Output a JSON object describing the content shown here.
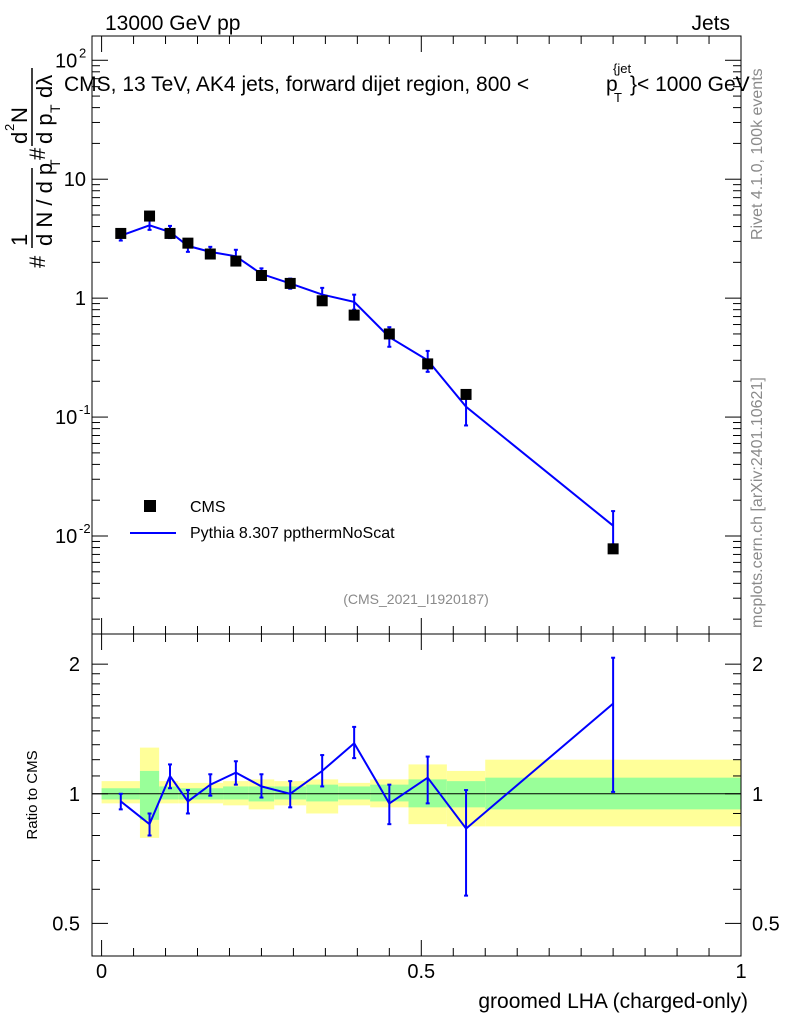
{
  "header": {
    "left": "13000 GeV pp",
    "right": "Jets"
  },
  "side_labels": {
    "rivet": "Rivet 4.1.0,  100k events",
    "mcplots": "mcplots.cern.ch [arXiv:2401.10621]"
  },
  "chart_data": [
    {
      "type": "line",
      "panel": "main",
      "title": "CMS, 13 TeV, AK4 jets, forward dijet region, 800 <",
      "title_pt": "p",
      "title_sub": "T",
      "title_sup": "{jet",
      "title_end": "}< 1000 GeV",
      "ylabel_parts": {
        "frac_num": "1",
        "frac_den": "d N / d p",
        "hash1": "#",
        "hash2": "#",
        "sub_t": "T",
        "d2n": "d",
        "sup2": "2",
        "n": "N",
        "dpt_dl": "d p",
        "dl": "dλ"
      },
      "yscale": "log",
      "ylim": [
        0.0015,
        160
      ],
      "xlim": [
        -0.015,
        1.0
      ],
      "y_ticks": [
        {
          "base": "10",
          "exp": "-2",
          "value": 0.01
        },
        {
          "base": "10",
          "exp": "-1",
          "value": 0.1
        },
        {
          "base": "1",
          "exp": "",
          "value": 1
        },
        {
          "base": "10",
          "exp": "",
          "value": 10
        },
        {
          "base": "10",
          "exp": "2",
          "value": 100
        }
      ],
      "watermark": "(CMS_2021_I1920187)",
      "legend": [
        {
          "label": "CMS",
          "marker": "square",
          "color": "#000000"
        },
        {
          "label": "Pythia 8.307 ppthermNoScat",
          "marker": "line",
          "color": "#0000ff"
        }
      ],
      "series": [
        {
          "name": "CMS",
          "color": "#000000",
          "x": [
            0.03,
            0.075,
            0.107,
            0.135,
            0.17,
            0.21,
            0.25,
            0.295,
            0.345,
            0.395,
            0.45,
            0.51,
            0.57,
            0.8
          ],
          "y": [
            3.5,
            4.9,
            3.5,
            2.9,
            2.35,
            2.05,
            1.55,
            1.33,
            0.95,
            0.72,
            0.5,
            0.28,
            0.155,
            0.0078
          ]
        },
        {
          "name": "Pythia 8.307 ppthermNoScat",
          "color": "#0000ff",
          "x": [
            0.03,
            0.075,
            0.107,
            0.135,
            0.17,
            0.21,
            0.25,
            0.295,
            0.345,
            0.395,
            0.45,
            0.51,
            0.57,
            0.8
          ],
          "y": [
            3.35,
            4.1,
            3.6,
            2.75,
            2.45,
            2.25,
            1.6,
            1.33,
            1.07,
            0.93,
            0.47,
            0.3,
            0.122,
            0.0122
          ],
          "err_lo": [
            3.05,
            3.75,
            3.2,
            2.45,
            2.2,
            1.95,
            1.45,
            1.2,
            0.92,
            0.8,
            0.39,
            0.24,
            0.085,
            0.0085
          ],
          "err_hi": [
            3.7,
            4.5,
            4.05,
            3.1,
            2.7,
            2.55,
            1.78,
            1.46,
            1.22,
            1.07,
            0.57,
            0.36,
            0.158,
            0.0162
          ]
        }
      ]
    },
    {
      "type": "line",
      "panel": "ratio",
      "ylabel": "Ratio to CMS",
      "yscale": "log",
      "ylim": [
        0.42,
        2.35
      ],
      "xlim": [
        -0.015,
        1.0
      ],
      "y_ticks": [
        {
          "label": "0.5",
          "value": 0.5
        },
        {
          "label": "1",
          "value": 1
        },
        {
          "label": "2",
          "value": 2
        }
      ],
      "x_ticks": [
        {
          "label": "0",
          "value": 0
        },
        {
          "label": "0.5",
          "value": 0.5
        },
        {
          "label": "1",
          "value": 1
        }
      ],
      "xlabel": "groomed LHA (charged-only)",
      "bands": [
        {
          "x0": 0.0,
          "x1": 0.06,
          "g_lo": 0.97,
          "g_hi": 1.03,
          "y_lo": 0.95,
          "y_hi": 1.07
        },
        {
          "x0": 0.06,
          "x1": 0.09,
          "g_lo": 0.87,
          "g_hi": 1.13,
          "y_lo": 0.79,
          "y_hi": 1.28
        },
        {
          "x0": 0.09,
          "x1": 0.12,
          "g_lo": 0.97,
          "g_hi": 1.04,
          "y_lo": 0.95,
          "y_hi": 1.07
        },
        {
          "x0": 0.12,
          "x1": 0.15,
          "g_lo": 0.97,
          "g_hi": 1.03,
          "y_lo": 0.95,
          "y_hi": 1.06
        },
        {
          "x0": 0.15,
          "x1": 0.19,
          "g_lo": 0.97,
          "g_hi": 1.03,
          "y_lo": 0.95,
          "y_hi": 1.06
        },
        {
          "x0": 0.19,
          "x1": 0.23,
          "g_lo": 0.97,
          "g_hi": 1.04,
          "y_lo": 0.94,
          "y_hi": 1.07
        },
        {
          "x0": 0.23,
          "x1": 0.27,
          "g_lo": 0.96,
          "g_hi": 1.04,
          "y_lo": 0.92,
          "y_hi": 1.08
        },
        {
          "x0": 0.27,
          "x1": 0.32,
          "g_lo": 0.97,
          "g_hi": 1.04,
          "y_lo": 0.94,
          "y_hi": 1.07
        },
        {
          "x0": 0.32,
          "x1": 0.37,
          "g_lo": 0.96,
          "g_hi": 1.05,
          "y_lo": 0.9,
          "y_hi": 1.08
        },
        {
          "x0": 0.37,
          "x1": 0.42,
          "g_lo": 0.97,
          "g_hi": 1.04,
          "y_lo": 0.94,
          "y_hi": 1.06
        },
        {
          "x0": 0.42,
          "x1": 0.48,
          "g_lo": 0.96,
          "g_hi": 1.05,
          "y_lo": 0.93,
          "y_hi": 1.08
        },
        {
          "x0": 0.48,
          "x1": 0.54,
          "g_lo": 0.93,
          "g_hi": 1.08,
          "y_lo": 0.85,
          "y_hi": 1.17
        },
        {
          "x0": 0.54,
          "x1": 0.6,
          "g_lo": 0.93,
          "g_hi": 1.07,
          "y_lo": 0.84,
          "y_hi": 1.13
        },
        {
          "x0": 0.6,
          "x1": 1.0,
          "g_lo": 0.92,
          "g_hi": 1.09,
          "y_lo": 0.84,
          "y_hi": 1.2
        }
      ],
      "series": [
        {
          "name": "Pythia 8.307 ppthermNoScat / CMS",
          "color": "#0000ff",
          "x": [
            0.03,
            0.075,
            0.107,
            0.135,
            0.17,
            0.21,
            0.25,
            0.295,
            0.345,
            0.395,
            0.45,
            0.51,
            0.57,
            0.8
          ],
          "y": [
            0.96,
            0.85,
            1.1,
            0.96,
            1.05,
            1.12,
            1.04,
            1.0,
            1.13,
            1.31,
            0.95,
            1.09,
            0.83,
            1.62
          ],
          "err_lo": [
            0.92,
            0.8,
            1.03,
            0.9,
            0.99,
            1.05,
            0.98,
            0.93,
            1.04,
            1.21,
            0.85,
            0.95,
            0.58,
            1.01
          ],
          "err_hi": [
            1.0,
            0.9,
            1.17,
            1.02,
            1.11,
            1.19,
            1.11,
            1.07,
            1.23,
            1.43,
            1.05,
            1.22,
            1.02,
            2.07
          ]
        }
      ]
    }
  ]
}
